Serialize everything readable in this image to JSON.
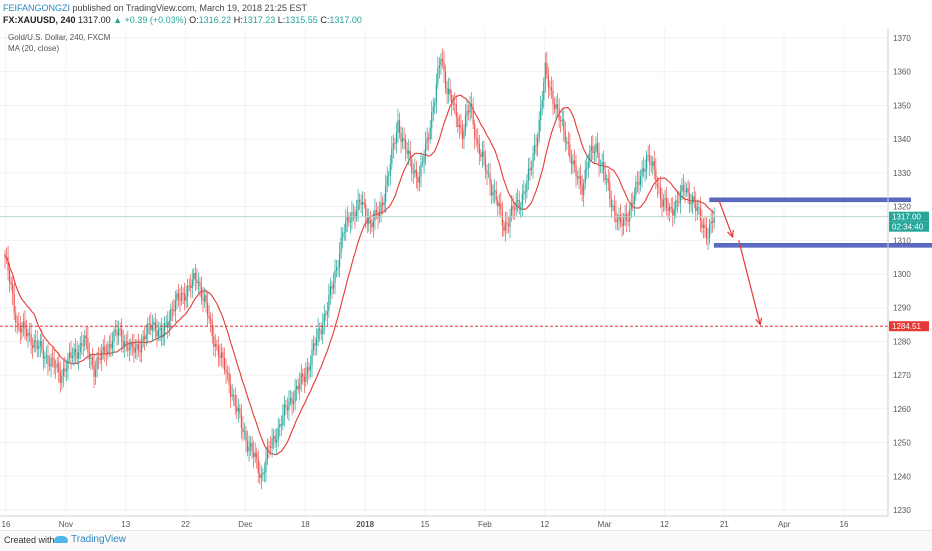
{
  "header": {
    "author": "FEIFANGONGZI",
    "published": "published on TradingView.com, March 19, 2018 21:25 EST",
    "symbol": "FX:XAUUSD, 240",
    "last": "1317.00",
    "change": "+0.39 (+0.03%)",
    "o_label": "O:",
    "o_value": "1316.22",
    "h_label": "H:",
    "h_value": "1317.23",
    "l_label": "L:",
    "l_value": "1315.55",
    "c_label": "C:",
    "c_value": "1317.00"
  },
  "footer": {
    "created_with": "Created with",
    "brand": "TradingView"
  },
  "chart_data": {
    "type": "candlestick",
    "title": "Gold/U.S. Dollar, 240, FXCM",
    "indicator": "MA (20, close)",
    "colors": {
      "up": "#26a69a",
      "down": "#ef5350",
      "ma": "#e53935",
      "target": "#e53935",
      "zone": "#5c6bc0",
      "arrow": "#e53935",
      "current_line": "#b0d4c8"
    },
    "y_axis": {
      "position": "right",
      "min": 1230,
      "max": 1370,
      "ticks": [
        1230,
        1240,
        1250,
        1260,
        1270,
        1280,
        1290,
        1300,
        1310,
        1320,
        1330,
        1340,
        1350,
        1360,
        1370
      ]
    },
    "x_axis": {
      "ticks": [
        "16",
        "Nov",
        "13",
        "22",
        "Dec",
        "18",
        "2018",
        "15",
        "Feb",
        "12",
        "Mar",
        "12",
        "21",
        "Apr",
        "16"
      ],
      "bold_ticks": [
        "2018"
      ]
    },
    "price_labels": [
      {
        "value": 1317.0,
        "text": "1317.00",
        "color": "#26a69a"
      },
      {
        "value": 1315.0,
        "text": "02:34:40",
        "color": "#26a69a"
      },
      {
        "value": 1284.51,
        "text": "1284.51",
        "color": "#e53935"
      }
    ],
    "target_line": 1284.51,
    "current_price": 1317.0,
    "key_closes": [
      {
        "x": 0,
        "y": 1305
      },
      {
        "x": 3,
        "y": 1298
      },
      {
        "x": 8,
        "y": 1285
      },
      {
        "x": 15,
        "y": 1282
      },
      {
        "x": 22,
        "y": 1278
      },
      {
        "x": 30,
        "y": 1274
      },
      {
        "x": 36,
        "y": 1270
      },
      {
        "x": 44,
        "y": 1276
      },
      {
        "x": 52,
        "y": 1280
      },
      {
        "x": 58,
        "y": 1272
      },
      {
        "x": 66,
        "y": 1278
      },
      {
        "x": 74,
        "y": 1283
      },
      {
        "x": 82,
        "y": 1277
      },
      {
        "x": 90,
        "y": 1280
      },
      {
        "x": 96,
        "y": 1286
      },
      {
        "x": 102,
        "y": 1281
      },
      {
        "x": 108,
        "y": 1289
      },
      {
        "x": 114,
        "y": 1293
      },
      {
        "x": 120,
        "y": 1296
      },
      {
        "x": 125,
        "y": 1299
      },
      {
        "x": 130,
        "y": 1292
      },
      {
        "x": 135,
        "y": 1282
      },
      {
        "x": 140,
        "y": 1276
      },
      {
        "x": 146,
        "y": 1268
      },
      {
        "x": 152,
        "y": 1258
      },
      {
        "x": 158,
        "y": 1250
      },
      {
        "x": 163,
        "y": 1245
      },
      {
        "x": 167,
        "y": 1240
      },
      {
        "x": 172,
        "y": 1248
      },
      {
        "x": 178,
        "y": 1254
      },
      {
        "x": 185,
        "y": 1262
      },
      {
        "x": 192,
        "y": 1267
      },
      {
        "x": 198,
        "y": 1273
      },
      {
        "x": 204,
        "y": 1282
      },
      {
        "x": 210,
        "y": 1290
      },
      {
        "x": 215,
        "y": 1300
      },
      {
        "x": 220,
        "y": 1312
      },
      {
        "x": 226,
        "y": 1318
      },
      {
        "x": 232,
        "y": 1321
      },
      {
        "x": 238,
        "y": 1315
      },
      {
        "x": 244,
        "y": 1318
      },
      {
        "x": 250,
        "y": 1330
      },
      {
        "x": 256,
        "y": 1345
      },
      {
        "x": 260,
        "y": 1338
      },
      {
        "x": 265,
        "y": 1332
      },
      {
        "x": 270,
        "y": 1328
      },
      {
        "x": 275,
        "y": 1340
      },
      {
        "x": 280,
        "y": 1352
      },
      {
        "x": 284,
        "y": 1365
      },
      {
        "x": 288,
        "y": 1355
      },
      {
        "x": 293,
        "y": 1348
      },
      {
        "x": 298,
        "y": 1342
      },
      {
        "x": 303,
        "y": 1350
      },
      {
        "x": 308,
        "y": 1338
      },
      {
        "x": 314,
        "y": 1330
      },
      {
        "x": 320,
        "y": 1322
      },
      {
        "x": 325,
        "y": 1314
      },
      {
        "x": 330,
        "y": 1318
      },
      {
        "x": 336,
        "y": 1322
      },
      {
        "x": 342,
        "y": 1330
      },
      {
        "x": 348,
        "y": 1345
      },
      {
        "x": 352,
        "y": 1360
      },
      {
        "x": 356,
        "y": 1354
      },
      {
        "x": 361,
        "y": 1346
      },
      {
        "x": 366,
        "y": 1340
      },
      {
        "x": 371,
        "y": 1330
      },
      {
        "x": 376,
        "y": 1326
      },
      {
        "x": 380,
        "y": 1334
      },
      {
        "x": 385,
        "y": 1338
      },
      {
        "x": 390,
        "y": 1330
      },
      {
        "x": 396,
        "y": 1320
      },
      {
        "x": 401,
        "y": 1314
      },
      {
        "x": 406,
        "y": 1318
      },
      {
        "x": 412,
        "y": 1326
      },
      {
        "x": 418,
        "y": 1335
      },
      {
        "x": 423,
        "y": 1330
      },
      {
        "x": 428,
        "y": 1322
      },
      {
        "x": 433,
        "y": 1318
      },
      {
        "x": 438,
        "y": 1322
      },
      {
        "x": 443,
        "y": 1325
      },
      {
        "x": 448,
        "y": 1322
      },
      {
        "x": 453,
        "y": 1316
      },
      {
        "x": 458,
        "y": 1312
      },
      {
        "x": 462,
        "y": 1317
      }
    ],
    "annotations": {
      "zones": [
        {
          "x1": 459,
          "x2": 590,
          "y": 1322,
          "label": ""
        },
        {
          "x1": 462,
          "x2": 610,
          "y": 1308.5,
          "label": ""
        }
      ],
      "arrows": [
        {
          "from": {
            "x": 465,
            "y": 1322
          },
          "to": {
            "x": 474,
            "y": 1311
          }
        },
        {
          "from": {
            "x": 478,
            "y": 1310
          },
          "to": {
            "x": 492,
            "y": 1285
          }
        }
      ]
    }
  }
}
